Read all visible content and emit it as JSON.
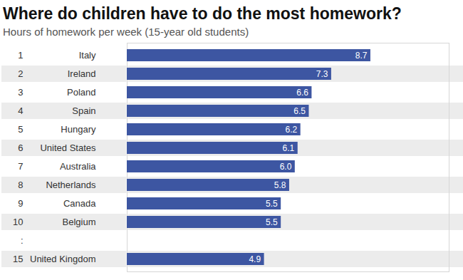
{
  "chart_data": {
    "type": "bar",
    "orientation": "horizontal",
    "title": "Where do children have to do the most homework?",
    "subtitle": "Hours of homework per week (15-year old students)",
    "ranks": [
      1,
      2,
      3,
      4,
      5,
      6,
      7,
      8,
      9,
      10,
      ":",
      15
    ],
    "categories": [
      "Italy",
      "Ireland",
      "Poland",
      "Spain",
      "Hungary",
      "United States",
      "Australia",
      "Netherlands",
      "Canada",
      "Belgium",
      null,
      "United Kingdom"
    ],
    "values": [
      8.7,
      7.3,
      6.6,
      6.5,
      6.2,
      6.1,
      6.0,
      5.8,
      5.5,
      5.5,
      null,
      4.9
    ],
    "value_labels": [
      "8.7",
      "7.3",
      "6.6",
      "6.5",
      "6.2",
      "6.1",
      "6.0",
      "5.8",
      "5.5",
      "5.5",
      null,
      "4.9"
    ],
    "color": "#3d56a2",
    "xlim": [
      0,
      11.5
    ],
    "data_labels": true,
    "tick_labels": false,
    "grid": false
  }
}
